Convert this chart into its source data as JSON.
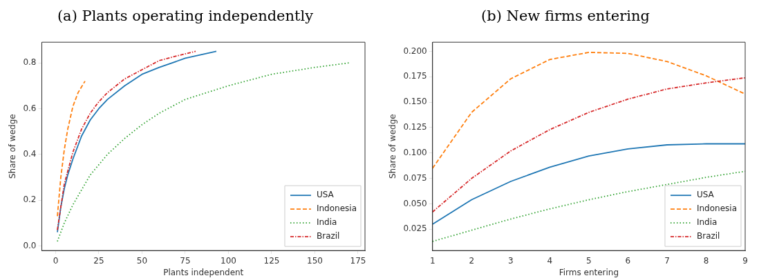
{
  "chart_data": [
    {
      "type": "line",
      "title": "(a) Plants operating independently",
      "xlabel": "Plants independent",
      "ylabel": "Share of wedge",
      "xlim": [
        -8,
        179
      ],
      "xticks": [
        0,
        25,
        50,
        75,
        100,
        125,
        150,
        175
      ],
      "ylim": [
        -0.02,
        0.89
      ],
      "yticks": [
        {
          "value": 0,
          "label": "0.0"
        },
        {
          "value": 0.2,
          "label": "0.2"
        },
        {
          "value": 0.4,
          "label": "0.4"
        },
        {
          "value": 0.6,
          "label": "0.6"
        },
        {
          "value": 0.8,
          "label": "0.8"
        }
      ],
      "grid": false,
      "legend": "bottom right",
      "marker": "none",
      "series": [
        {
          "name": "USA",
          "color": "#1f77b4",
          "line_style": "solid",
          "x": [
            1,
            3,
            5,
            7,
            10,
            15,
            20,
            25,
            30,
            40,
            50,
            60,
            75,
            93
          ],
          "values": [
            0.06,
            0.17,
            0.25,
            0.31,
            0.38,
            0.48,
            0.55,
            0.6,
            0.64,
            0.7,
            0.75,
            0.78,
            0.82,
            0.85
          ]
        },
        {
          "name": "Indonesia",
          "color": "#ff7f0e",
          "line_style": "dashed",
          "x": [
            1,
            3,
            5,
            7,
            10,
            13,
            17
          ],
          "values": [
            0.13,
            0.3,
            0.42,
            0.51,
            0.61,
            0.67,
            0.72
          ]
        },
        {
          "name": "India",
          "color": "#2ca02c",
          "line_style": "dotted",
          "x": [
            1,
            5,
            10,
            20,
            30,
            40,
            50,
            60,
            75,
            100,
            125,
            150,
            170
          ],
          "values": [
            0.02,
            0.1,
            0.18,
            0.31,
            0.4,
            0.47,
            0.53,
            0.58,
            0.64,
            0.7,
            0.75,
            0.78,
            0.8
          ]
        },
        {
          "name": "Brazil",
          "color": "#d62728",
          "line_style": "dashdot",
          "x": [
            1,
            5,
            10,
            15,
            20,
            25,
            30,
            40,
            50,
            60,
            70,
            81
          ],
          "values": [
            0.07,
            0.27,
            0.41,
            0.51,
            0.58,
            0.63,
            0.67,
            0.73,
            0.77,
            0.81,
            0.83,
            0.85
          ]
        }
      ]
    },
    {
      "type": "line",
      "title": "(b) New firms entering",
      "xlabel": "Firms entering",
      "ylabel": "Share of wedge",
      "categories": [
        "1",
        "2",
        "3",
        "4",
        "5",
        "6",
        "7",
        "8",
        "9"
      ],
      "ylim": [
        0.004,
        0.209
      ],
      "yticks": [
        {
          "value": 0.025,
          "label": "0.025"
        },
        {
          "value": 0.05,
          "label": "0.050"
        },
        {
          "value": 0.075,
          "label": "0.075"
        },
        {
          "value": 0.1,
          "label": "0.100"
        },
        {
          "value": 0.125,
          "label": "0.125"
        },
        {
          "value": 0.15,
          "label": "0.150"
        },
        {
          "value": 0.175,
          "label": "0.175"
        },
        {
          "value": 0.2,
          "label": "0.200"
        }
      ],
      "grid": false,
      "legend": "bottom right",
      "marker": "none",
      "series": [
        {
          "name": "USA",
          "color": "#1f77b4",
          "line_style": "solid",
          "values": [
            0.03,
            0.054,
            0.072,
            0.086,
            0.097,
            0.104,
            0.108,
            0.109,
            0.109
          ]
        },
        {
          "name": "Indonesia",
          "color": "#ff7f0e",
          "line_style": "dashed",
          "values": [
            0.085,
            0.14,
            0.173,
            0.192,
            0.199,
            0.198,
            0.19,
            0.176,
            0.158
          ]
        },
        {
          "name": "India",
          "color": "#2ca02c",
          "line_style": "dotted",
          "values": [
            0.013,
            0.024,
            0.035,
            0.045,
            0.054,
            0.062,
            0.069,
            0.076,
            0.082
          ]
        },
        {
          "name": "Brazil",
          "color": "#d62728",
          "line_style": "dashdot",
          "values": [
            0.042,
            0.075,
            0.102,
            0.123,
            0.14,
            0.153,
            0.163,
            0.169,
            0.174
          ]
        }
      ]
    }
  ]
}
